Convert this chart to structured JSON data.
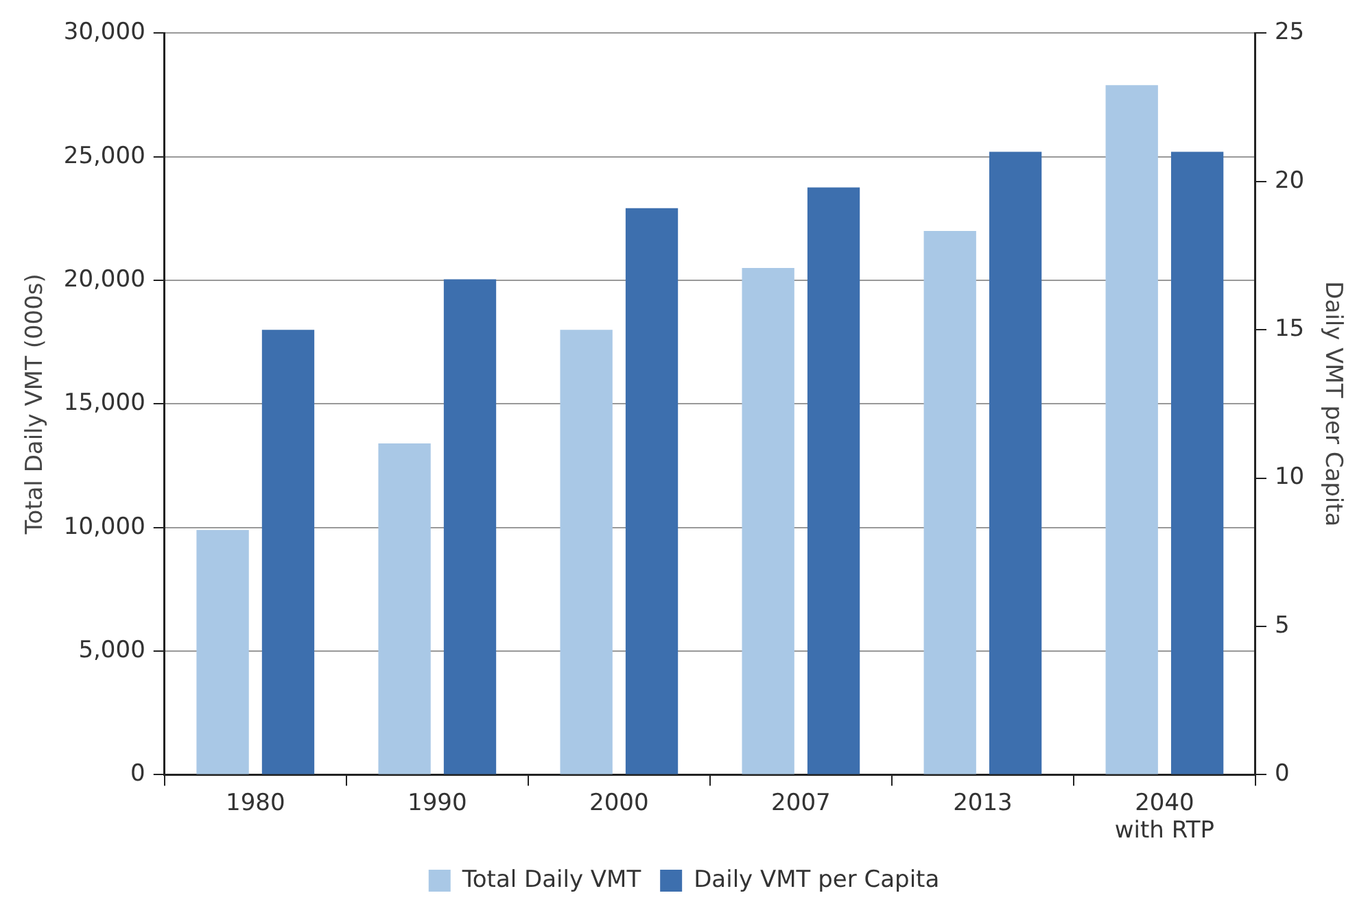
{
  "chart_data": {
    "type": "bar",
    "categories": [
      "1980",
      "1990",
      "2000",
      "2007",
      "2013",
      "2040\nwith RTP"
    ],
    "series": [
      {
        "name": "Total Daily VMT",
        "color": "#a9c8e6",
        "values": [
          9900,
          13400,
          18000,
          20500,
          22000,
          27900
        ]
      },
      {
        "name": "Daily VMT per Capita",
        "color": "#3d6fae",
        "axis": "y2",
        "values": [
          15.0,
          16.7,
          19.1,
          19.8,
          21.0,
          21.0
        ]
      }
    ],
    "ylabel": "Total Daily VMT (000s)",
    "y2label": "Daily VMT per Capita",
    "ylim": [
      0,
      30000
    ],
    "yticks": [
      0,
      {
        "value": 5000,
        "label": "5,000"
      },
      {
        "value": 10000,
        "label": "10,000"
      },
      {
        "value": 15000,
        "label": "15,000"
      },
      {
        "value": 20000,
        "label": "20,000"
      },
      {
        "value": 25000,
        "label": "25,000"
      },
      {
        "value": 30000,
        "label": "30,000"
      }
    ],
    "y2lim": [
      0,
      25
    ],
    "y2ticks": [
      0,
      5,
      10,
      15,
      20,
      25
    ],
    "grid": "y",
    "legend": "bottom"
  }
}
